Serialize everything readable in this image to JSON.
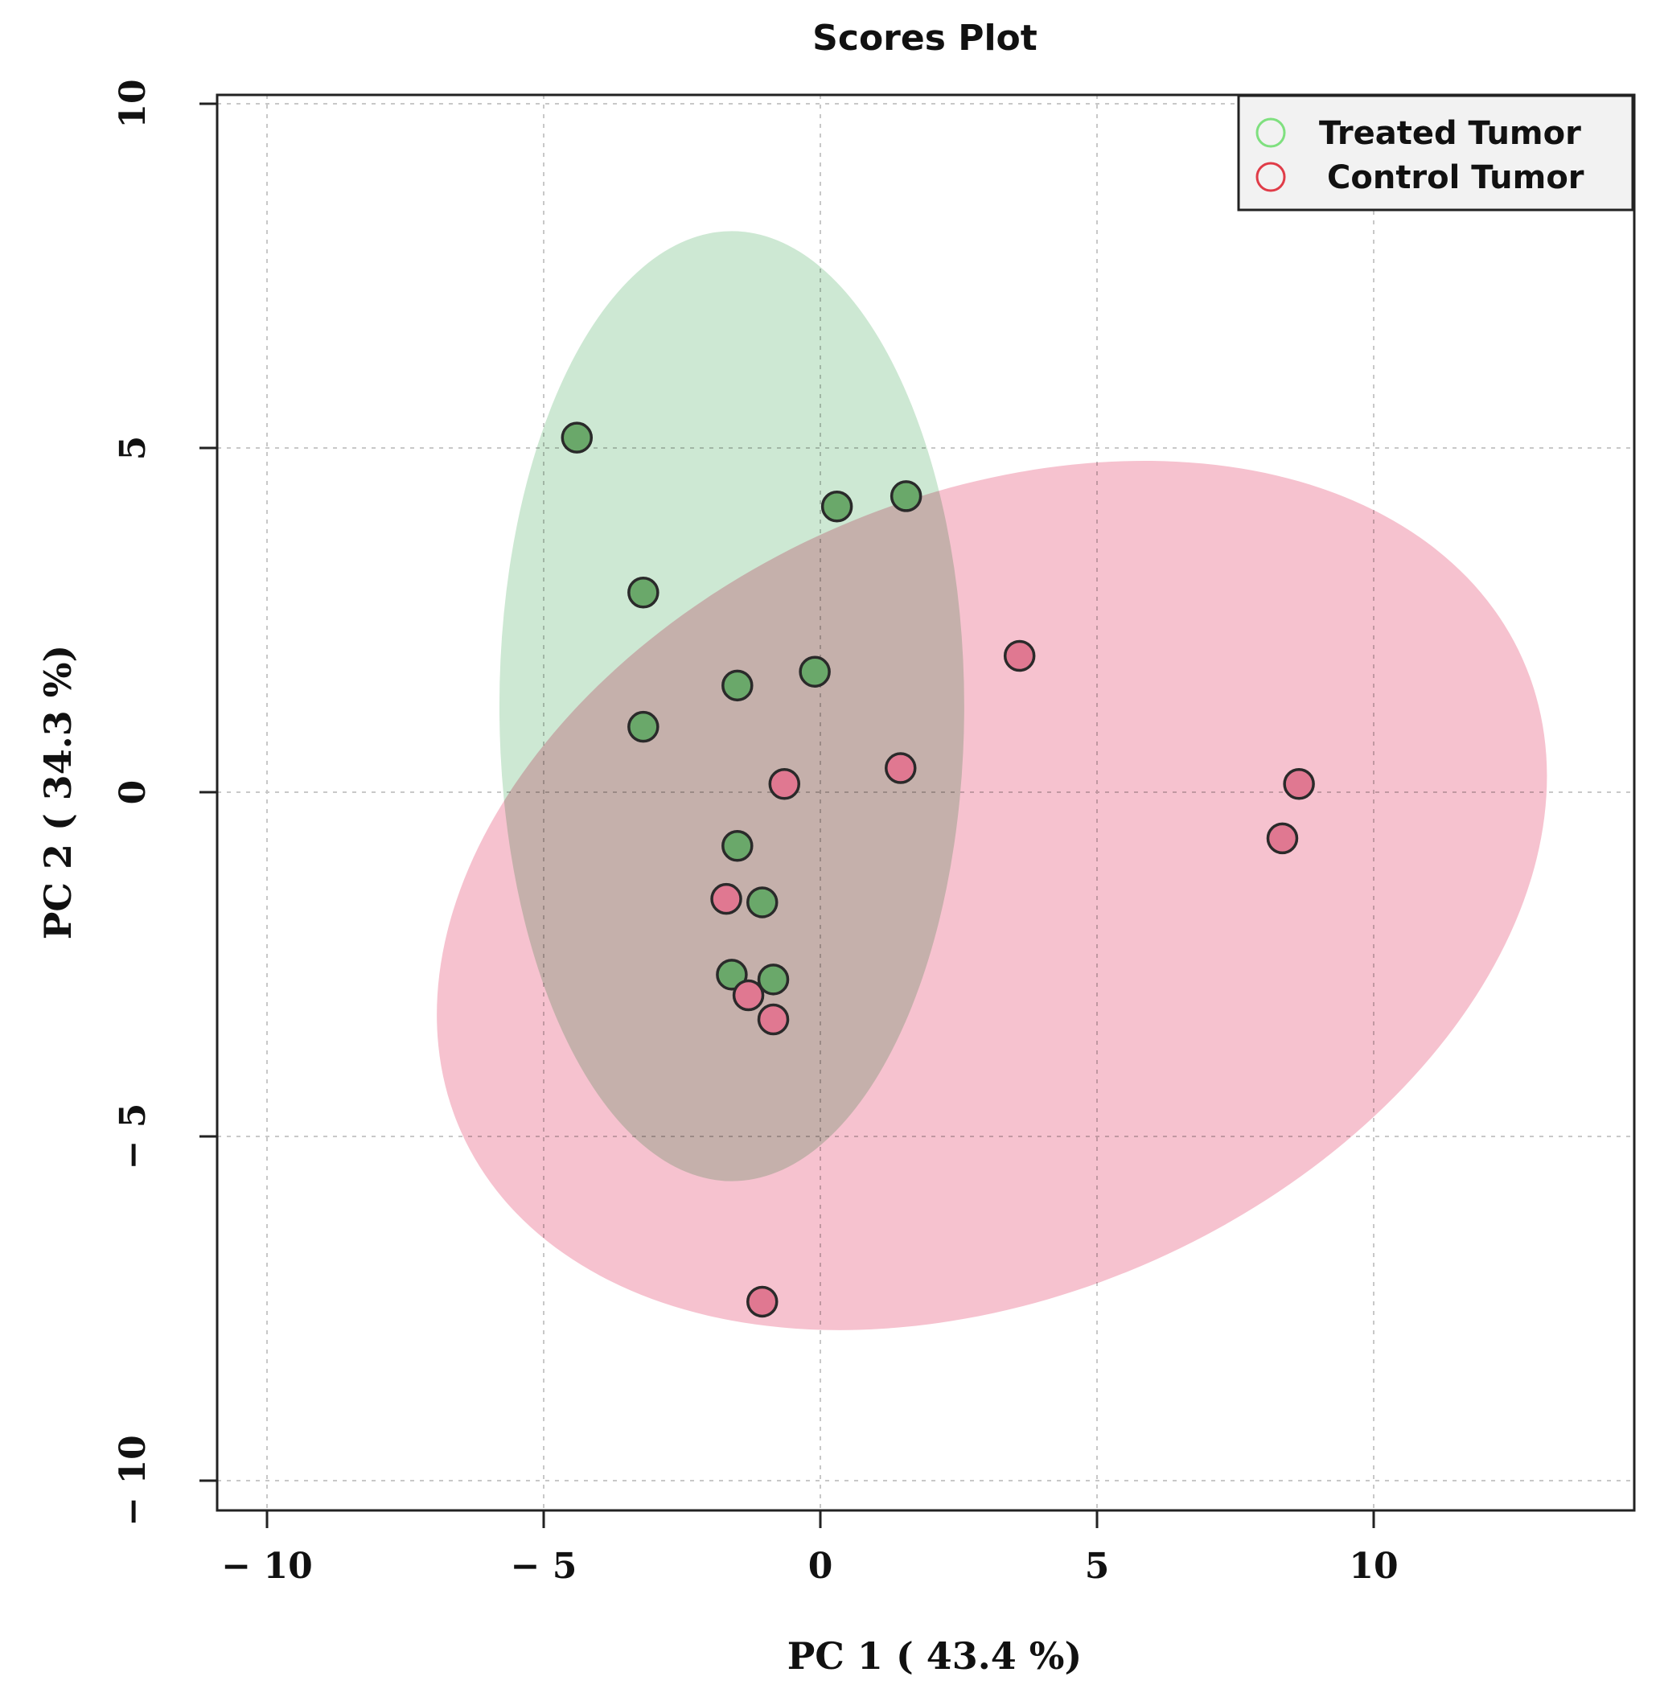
{
  "chart_data": {
    "type": "scatter",
    "title": "Scores Plot",
    "xlabel": "PC 1 ( 43.4 %)",
    "ylabel": "PC 2 ( 34.3 %)",
    "xlim": [
      -11,
      14.5
    ],
    "ylim": [
      -10.4,
      10.2
    ],
    "xticks": [
      -10,
      -5,
      0,
      5,
      10
    ],
    "yticks": [
      -10,
      -5,
      0,
      5,
      10
    ],
    "xtick_labels": [
      "− 10",
      "− 5",
      "0",
      "5",
      "10"
    ],
    "ytick_labels": [
      "− 10",
      "− 5",
      "0",
      "5",
      "10"
    ],
    "grid": true,
    "legend_position": "top-right",
    "series": [
      {
        "name": "Treated Tumor",
        "color": "#6aa86a",
        "legend_color": "#7fe07f",
        "ellipse": {
          "cx": -1.6,
          "cy": 1.25,
          "rx": 4.2,
          "ry": 6.9,
          "rotation_deg": 0,
          "fill": "#cde8d3"
        },
        "points": [
          {
            "x": -4.4,
            "y": 5.15
          },
          {
            "x": 0.3,
            "y": 4.15
          },
          {
            "x": 1.55,
            "y": 4.3
          },
          {
            "x": -3.2,
            "y": 2.9
          },
          {
            "x": -1.5,
            "y": 1.55
          },
          {
            "x": -0.1,
            "y": 1.75
          },
          {
            "x": -3.2,
            "y": 0.95
          },
          {
            "x": -1.5,
            "y": -0.78
          },
          {
            "x": -1.05,
            "y": -1.6
          },
          {
            "x": -1.6,
            "y": -2.65
          },
          {
            "x": -0.85,
            "y": -2.72
          }
        ]
      },
      {
        "name": "Control Tumor",
        "color": "#e07891",
        "legend_color": "#e03c48",
        "ellipse": {
          "cx": 3.1,
          "cy": -1.5,
          "rx": 10.5,
          "ry": 5.8,
          "rotation_deg": -24,
          "fill": "#f6c2cf"
        },
        "points": [
          {
            "x": 3.6,
            "y": 1.98
          },
          {
            "x": 1.45,
            "y": 0.35
          },
          {
            "x": -0.65,
            "y": 0.12
          },
          {
            "x": 8.65,
            "y": 0.12
          },
          {
            "x": 8.35,
            "y": -0.67
          },
          {
            "x": -1.7,
            "y": -1.55
          },
          {
            "x": -1.3,
            "y": -2.95
          },
          {
            "x": -0.85,
            "y": -3.3
          },
          {
            "x": -1.05,
            "y": -7.4
          }
        ]
      }
    ]
  }
}
